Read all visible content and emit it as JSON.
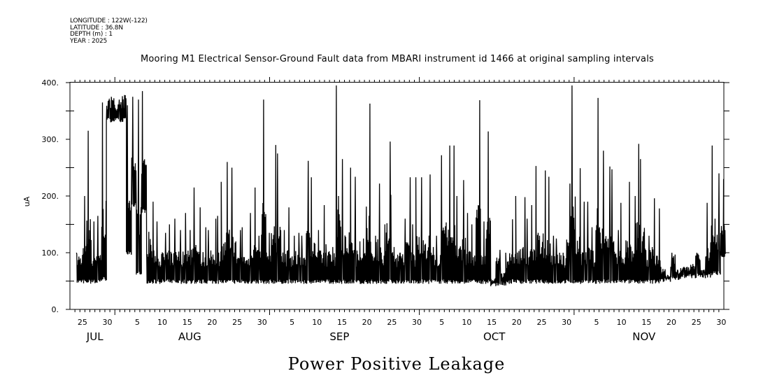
{
  "header": {
    "longitude": "LONGITUDE : 122W(-122)",
    "latitude": "LATITUDE : 36.8N",
    "depth": "DEPTH (m) : 1",
    "year": "YEAR : 2025"
  },
  "chart_data": {
    "type": "line",
    "title": "Mooring M1 Electrical Sensor-Ground Fault data from MBARI instrument id 1466 at original sampling intervals",
    "xlabel": "Power Positive Leakage",
    "ylabel": "uA",
    "ylim": [
      0,
      400
    ],
    "y_ticks": [
      "0.",
      "100.",
      "200.",
      "300.",
      "400."
    ],
    "x_range_days": [
      "2025-07-23",
      "2025-12-01"
    ],
    "start_date": "2025-07-24",
    "interval": "daily envelope (min/max of original samples)",
    "series": [
      {
        "name": "Power Positive Leakage",
        "daily_max": [
          100,
          200,
          315,
          155,
          165,
          365,
          370,
          375,
          370,
          378,
          360,
          375,
          370,
          385,
          255,
          190,
          155,
          135,
          150,
          160,
          140,
          170,
          140,
          215,
          180,
          145,
          140,
          160,
          165,
          225,
          260,
          250,
          140,
          145,
          170,
          215,
          130,
          370,
          135,
          290,
          275,
          140,
          180,
          130,
          135,
          130,
          262,
          233,
          140,
          184,
          115,
          110,
          395,
          265,
          250,
          234,
          120,
          125,
          363,
          130,
          222,
          150,
          296,
          202,
          100,
          160,
          233,
          150,
          233,
          233,
          238,
          110,
          130,
          272,
          289,
          289,
          200,
          228,
          170,
          150,
          369,
          155,
          314,
          55,
          105,
          65,
          100,
          159,
          200,
          198,
          160,
          184,
          253,
          245,
          234,
          130,
          125,
          100,
          222,
          395,
          249,
          190,
          190,
          145,
          373,
          280,
          252,
          247,
          140,
          188,
          225,
          200,
          292,
          265,
          130,
          196,
          178,
          75,
          60,
          100,
          70,
          75,
          75,
          80,
          100,
          70,
          188,
          289,
          240,
          230
        ],
        "daily_min": [
          45,
          45,
          45,
          45,
          45,
          50,
          330,
          330,
          330,
          330,
          95,
          180,
          60,
          170,
          45,
          45,
          45,
          45,
          45,
          45,
          45,
          45,
          45,
          45,
          45,
          45,
          45,
          45,
          45,
          45,
          45,
          45,
          45,
          45,
          45,
          45,
          45,
          45,
          45,
          45,
          45,
          45,
          45,
          45,
          45,
          45,
          45,
          45,
          45,
          45,
          45,
          45,
          45,
          45,
          45,
          45,
          45,
          45,
          45,
          45,
          45,
          45,
          45,
          45,
          45,
          45,
          45,
          45,
          45,
          45,
          45,
          45,
          45,
          45,
          45,
          45,
          45,
          45,
          45,
          45,
          45,
          45,
          45,
          40,
          40,
          42,
          45,
          45,
          45,
          45,
          45,
          45,
          45,
          45,
          45,
          45,
          45,
          45,
          45,
          45,
          45,
          45,
          45,
          45,
          45,
          45,
          45,
          45,
          45,
          45,
          45,
          45,
          45,
          45,
          45,
          45,
          45,
          48,
          48,
          50,
          52,
          55,
          55,
          55,
          55,
          55,
          55,
          60,
          60,
          90
        ]
      }
    ],
    "x_tick_labels": [
      {
        "label": "25",
        "date": "2025-07-25"
      },
      {
        "label": "30",
        "date": "2025-07-30"
      },
      {
        "label": "5",
        "date": "2025-08-05"
      },
      {
        "label": "10",
        "date": "2025-08-10"
      },
      {
        "label": "15",
        "date": "2025-08-15"
      },
      {
        "label": "20",
        "date": "2025-08-20"
      },
      {
        "label": "25",
        "date": "2025-08-25"
      },
      {
        "label": "30",
        "date": "2025-08-30"
      },
      {
        "label": "5",
        "date": "2025-09-05"
      },
      {
        "label": "10",
        "date": "2025-09-10"
      },
      {
        "label": "15",
        "date": "2025-09-15"
      },
      {
        "label": "20",
        "date": "2025-09-20"
      },
      {
        "label": "25",
        "date": "2025-09-25"
      },
      {
        "label": "30",
        "date": "2025-09-30"
      },
      {
        "label": "5",
        "date": "2025-10-05"
      },
      {
        "label": "10",
        "date": "2025-10-10"
      },
      {
        "label": "15",
        "date": "2025-10-15"
      },
      {
        "label": "20",
        "date": "2025-10-20"
      },
      {
        "label": "25",
        "date": "2025-10-25"
      },
      {
        "label": "30",
        "date": "2025-10-30"
      },
      {
        "label": "5",
        "date": "2025-11-05"
      },
      {
        "label": "10",
        "date": "2025-11-10"
      },
      {
        "label": "15",
        "date": "2025-11-15"
      },
      {
        "label": "20",
        "date": "2025-11-20"
      },
      {
        "label": "25",
        "date": "2025-11-25"
      },
      {
        "label": "30",
        "date": "2025-11-30"
      }
    ],
    "month_labels": [
      {
        "label": "JUL",
        "date": "2025-07-28"
      },
      {
        "label": "AUG",
        "date": "2025-08-16"
      },
      {
        "label": "SEP",
        "date": "2025-09-15"
      },
      {
        "label": "OCT",
        "date": "2025-10-16"
      },
      {
        "label": "NOV",
        "date": "2025-11-15"
      }
    ],
    "grid": false,
    "line_color": "#000000"
  }
}
